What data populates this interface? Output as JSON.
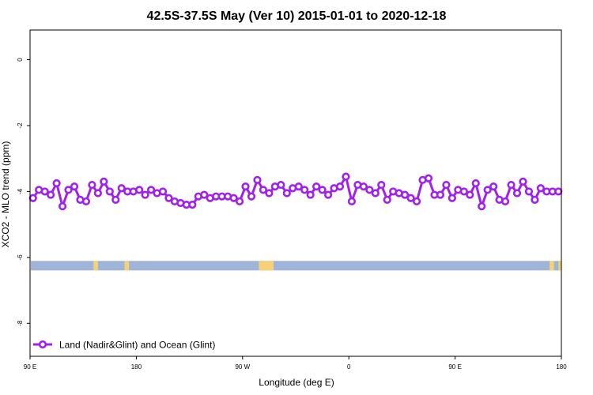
{
  "chart_data": {
    "type": "line",
    "title": "42.5S-37.5S May (Ver 10)   2015-01-01 to 2020-12-18",
    "xlabel": "Longitude (deg E)",
    "ylabel": "XCO2 - MLO trend (ppm)",
    "xlim": [
      90,
      270
    ],
    "ylim": [
      -9,
      0.9
    ],
    "xticks": [
      {
        "value": 90,
        "label": "90 E"
      },
      {
        "value": 126,
        "label": "180"
      },
      {
        "value": 162,
        "label": "90 W"
      },
      {
        "value": 198,
        "label": "0"
      },
      {
        "value": 234,
        "label": "90 E"
      },
      {
        "value": 270,
        "label": "180"
      }
    ],
    "yticks": [
      {
        "value": 0,
        "label": "0"
      },
      {
        "value": -2,
        "label": "-2"
      },
      {
        "value": -4,
        "label": "-4"
      },
      {
        "value": -6,
        "label": "-6"
      },
      {
        "value": -8,
        "label": "-8"
      }
    ],
    "legend": {
      "position": "bottom-left"
    },
    "series": [
      {
        "name": "Land (Nadir&Glint) and Ocean (Glint)",
        "color": "#a020f0",
        "x": [
          91.0,
          93.0,
          95.0,
          97.0,
          99.0,
          101.0,
          103.0,
          105.0,
          107.0,
          109.0,
          111.0,
          113.0,
          115.0,
          117.0,
          119.0,
          121.0,
          123.0,
          125.0,
          127.0,
          129.0,
          131.0,
          133.0,
          135.0,
          137.0,
          139.0,
          141.0,
          143.0,
          145.0,
          147.0,
          149.0,
          151.0,
          153.0,
          155.0,
          157.0,
          159.0,
          161.0,
          163.0,
          165.0,
          167.0,
          169.0,
          171.0,
          173.0,
          175.0,
          177.0,
          179.0,
          181.0,
          183.0,
          185.0,
          187.0,
          189.0,
          191.0,
          193.0,
          195.0,
          197.0,
          199.0,
          201.0,
          203.0,
          205.0,
          207.0,
          209.0,
          211.0,
          213.0,
          215.0,
          217.0,
          219.0,
          221.0,
          223.0,
          225.0,
          227.0,
          229.0,
          231.0,
          233.0,
          235.0,
          237.0,
          239.0,
          241.0,
          243.0,
          245.0,
          247.0,
          249.0,
          251.0,
          253.0,
          255.0,
          257.0,
          259.0,
          261.0,
          263.0,
          265.0,
          267.0,
          269.0
        ],
        "y": [
          -4.2,
          -3.95,
          -4.0,
          -4.1,
          -3.75,
          -4.45,
          -3.95,
          -3.85,
          -4.25,
          -4.3,
          -3.8,
          -4.05,
          -3.7,
          -4.0,
          -4.25,
          -3.9,
          -4.0,
          -4.0,
          -3.95,
          -4.1,
          -3.95,
          -4.05,
          -4.0,
          -4.2,
          -4.3,
          -4.35,
          -4.4,
          -4.4,
          -4.15,
          -4.1,
          -4.2,
          -4.15,
          -4.15,
          -4.15,
          -4.2,
          -4.3,
          -3.85,
          -4.15,
          -3.65,
          -3.95,
          -4.05,
          -3.85,
          -3.8,
          -4.05,
          -3.9,
          -3.85,
          -3.95,
          -4.1,
          -3.85,
          -3.95,
          -4.1,
          -3.9,
          -3.85,
          -3.55,
          -4.3,
          -3.8,
          -3.85,
          -3.95,
          -4.05,
          -3.8,
          -4.25,
          -4.0,
          -4.05,
          -4.1,
          -4.2,
          -4.3,
          -3.65,
          -3.6,
          -4.1,
          -4.1,
          -3.8,
          -4.2,
          -3.95,
          -4.0,
          -4.1,
          -3.75,
          -4.45,
          -3.95,
          -3.85,
          -4.25,
          -4.3,
          -3.8,
          -4.05,
          -3.7,
          -4.0,
          -4.25,
          -3.9,
          -4.0,
          -4.0,
          -4.0
        ]
      }
    ],
    "land_ocean_strip": {
      "y": -6.25,
      "ocean_color": "#9fb4d6",
      "land_color": "#f5d27a",
      "land_segments": [
        [
          111.5,
          113.0
        ],
        [
          122.0,
          123.5
        ],
        [
          167.5,
          172.5
        ],
        [
          266.0,
          267.5
        ],
        [
          269.0,
          270.0
        ]
      ]
    }
  }
}
